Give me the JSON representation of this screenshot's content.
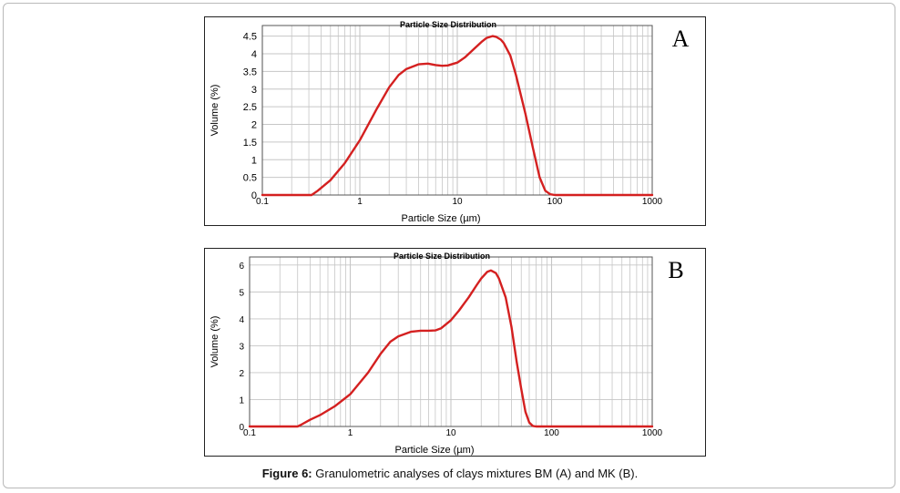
{
  "caption": {
    "label": "Figure 6:",
    "text": " Granulometric analyses of clays mixtures BM (A) and MK (B)."
  },
  "colors": {
    "curve": "#d42020",
    "grid": "#c6c6c6",
    "frame": "#000000"
  },
  "chart_data": [
    {
      "panel_label": "A",
      "type": "line",
      "title": "Particle Size Distribution",
      "xlabel": "Particle Size (µm)",
      "ylabel": "Volume (%)",
      "x_scale": "log",
      "xlim": [
        0.1,
        1000
      ],
      "ylim": [
        0,
        4.8
      ],
      "x_ticks": [
        "0.1",
        "1",
        "10",
        "100",
        "1000"
      ],
      "y_ticks": [
        "0",
        "0.5",
        "1",
        "1.5",
        "2",
        "2.5",
        "3",
        "3.5",
        "4",
        "4.5"
      ],
      "y_tick_values": [
        0,
        0.5,
        1,
        1.5,
        2,
        2.5,
        3,
        3.5,
        4,
        4.5
      ],
      "grid": true,
      "series": [
        {
          "x": [
            0.1,
            0.32,
            0.37,
            0.5,
            0.7,
            1.0,
            1.5,
            2.0,
            2.5,
            3.0,
            4.0,
            5.0,
            6.0,
            7.0,
            8.0,
            10.0,
            12.0,
            15.0,
            18.0,
            20.0,
            23.0,
            25.0,
            28.0,
            30.0,
            35.0,
            40.0,
            50.0,
            60.0,
            70.0,
            80.0,
            90.0,
            100.0,
            200.0,
            1000.0
          ],
          "y": [
            0,
            0,
            0.12,
            0.42,
            0.9,
            1.55,
            2.45,
            3.05,
            3.4,
            3.57,
            3.7,
            3.72,
            3.68,
            3.66,
            3.67,
            3.75,
            3.9,
            4.15,
            4.35,
            4.45,
            4.5,
            4.48,
            4.4,
            4.3,
            3.95,
            3.4,
            2.3,
            1.3,
            0.5,
            0.12,
            0.02,
            0,
            0,
            0
          ]
        }
      ]
    },
    {
      "panel_label": "B",
      "type": "line",
      "title": "Particle Size Distribution",
      "xlabel": "Particle Size (µm)",
      "ylabel": "Volume (%)",
      "x_scale": "log",
      "xlim": [
        0.1,
        1000
      ],
      "ylim": [
        0,
        6.3
      ],
      "x_ticks": [
        "0.1",
        "1",
        "10",
        "100",
        "1000"
      ],
      "y_ticks": [
        "0",
        "1",
        "2",
        "3",
        "4",
        "5",
        "6"
      ],
      "y_tick_values": [
        0,
        1,
        2,
        3,
        4,
        5,
        6
      ],
      "grid": true,
      "series": [
        {
          "x": [
            0.1,
            0.3,
            0.32,
            0.4,
            0.5,
            0.7,
            1.0,
            1.5,
            2.0,
            2.5,
            3.0,
            4.0,
            5.0,
            6.0,
            7.0,
            8.0,
            10.0,
            12.0,
            15.0,
            18.0,
            20.0,
            23.0,
            25.0,
            28.0,
            30.0,
            35.0,
            40.0,
            45.0,
            50.0,
            55.0,
            60.0,
            65.0,
            70.0,
            80.0,
            100.0,
            1000.0
          ],
          "y": [
            0,
            0,
            0.05,
            0.25,
            0.42,
            0.75,
            1.2,
            2.0,
            2.7,
            3.15,
            3.35,
            3.52,
            3.56,
            3.56,
            3.57,
            3.65,
            3.95,
            4.3,
            4.8,
            5.25,
            5.5,
            5.75,
            5.8,
            5.7,
            5.5,
            4.8,
            3.7,
            2.4,
            1.4,
            0.55,
            0.15,
            0.02,
            0,
            0,
            0,
            0
          ]
        }
      ]
    }
  ]
}
